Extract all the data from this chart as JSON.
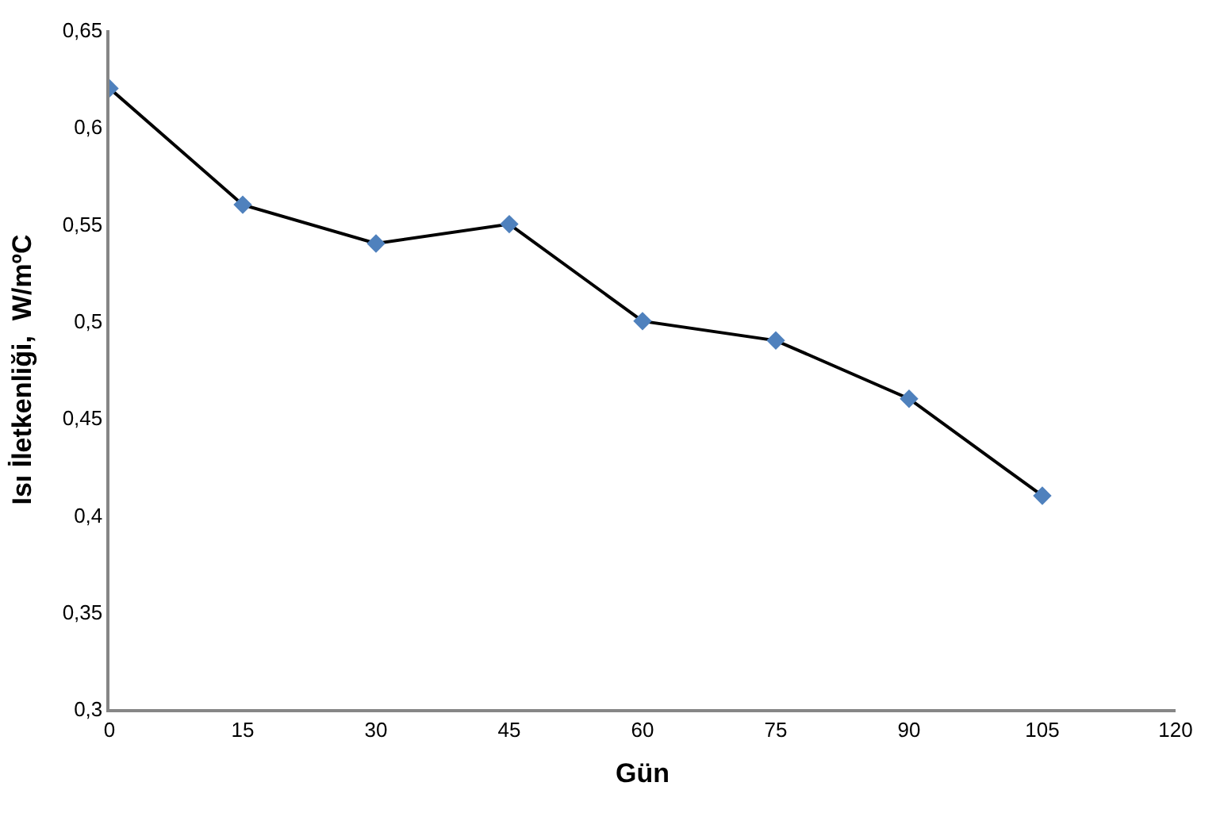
{
  "chart_data": {
    "type": "line",
    "xlabel": "Gün",
    "ylabel": "Isı İletkenliği,  W/mºC",
    "x": [
      0,
      15,
      30,
      45,
      60,
      75,
      90,
      105
    ],
    "series": [
      {
        "color": "#4f81bd",
        "values": [
          0.62,
          0.56,
          0.54,
          0.55,
          0.5,
          0.49,
          0.46,
          0.41
        ]
      }
    ],
    "xlim": [
      0,
      120
    ],
    "xticks": [
      0,
      15,
      30,
      45,
      60,
      75,
      90,
      105,
      120
    ],
    "ylim": [
      0.3,
      0.65
    ],
    "yticks": [
      {
        "value": 0.3,
        "label": "0,3"
      },
      {
        "value": 0.35,
        "label": "0,35"
      },
      {
        "value": 0.4,
        "label": "0,4"
      },
      {
        "value": 0.45,
        "label": "0,45"
      },
      {
        "value": 0.5,
        "label": "0,5"
      },
      {
        "value": 0.55,
        "label": "0,55"
      },
      {
        "value": 0.6,
        "label": "0,6"
      },
      {
        "value": 0.65,
        "label": "0,65"
      }
    ],
    "marker": "diamond",
    "line_style": "solid"
  }
}
